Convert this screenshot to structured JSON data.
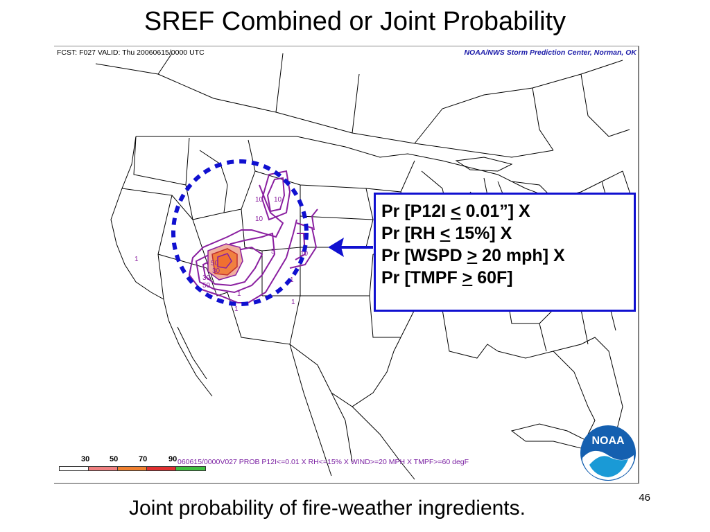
{
  "title": "SREF Combined or Joint Probability",
  "map": {
    "fcst_label": "FCST: F027  VALID: Thu  20060615/0000 UTC",
    "center_label": "NOAA/NWS Storm Prediction Center, Norman, OK",
    "contour_labels": [
      "10",
      "10",
      "10",
      "5",
      "10",
      "30",
      "50",
      "50",
      "30",
      "1",
      "1",
      "1",
      "1",
      "1"
    ]
  },
  "ingredients": [
    {
      "pre": "Pr [P12I ",
      "sym": "<",
      "post": " 0.01”] X"
    },
    {
      "pre": "Pr [RH ",
      "sym": "<",
      "post": " 15%] X"
    },
    {
      "pre": "Pr [WSPD ",
      "sym": ">",
      "post": " 20 mph] X"
    },
    {
      "pre": "Pr [TMPF ",
      "sym": ">",
      "post": " 60F]"
    }
  ],
  "legend": {
    "ticks": [
      "30",
      "50",
      "70",
      "90"
    ],
    "description": "060615/0000V027 PROB P12I<=0.01 X RH<=15% X WIND>=20 MPH X TMPF>=60 degF",
    "colors": [
      "#ffffff",
      "#f08080",
      "#f08030",
      "#e03030",
      "#40c040"
    ]
  },
  "logo_text": "NOAA",
  "caption": "Joint probability of fire-weather ingredients.",
  "page_number": "46",
  "colors": {
    "contour": "#8a1fa0",
    "highlight_ring": "#1010d0",
    "box_border": "#1010d0",
    "arrow": "#1010d0"
  }
}
